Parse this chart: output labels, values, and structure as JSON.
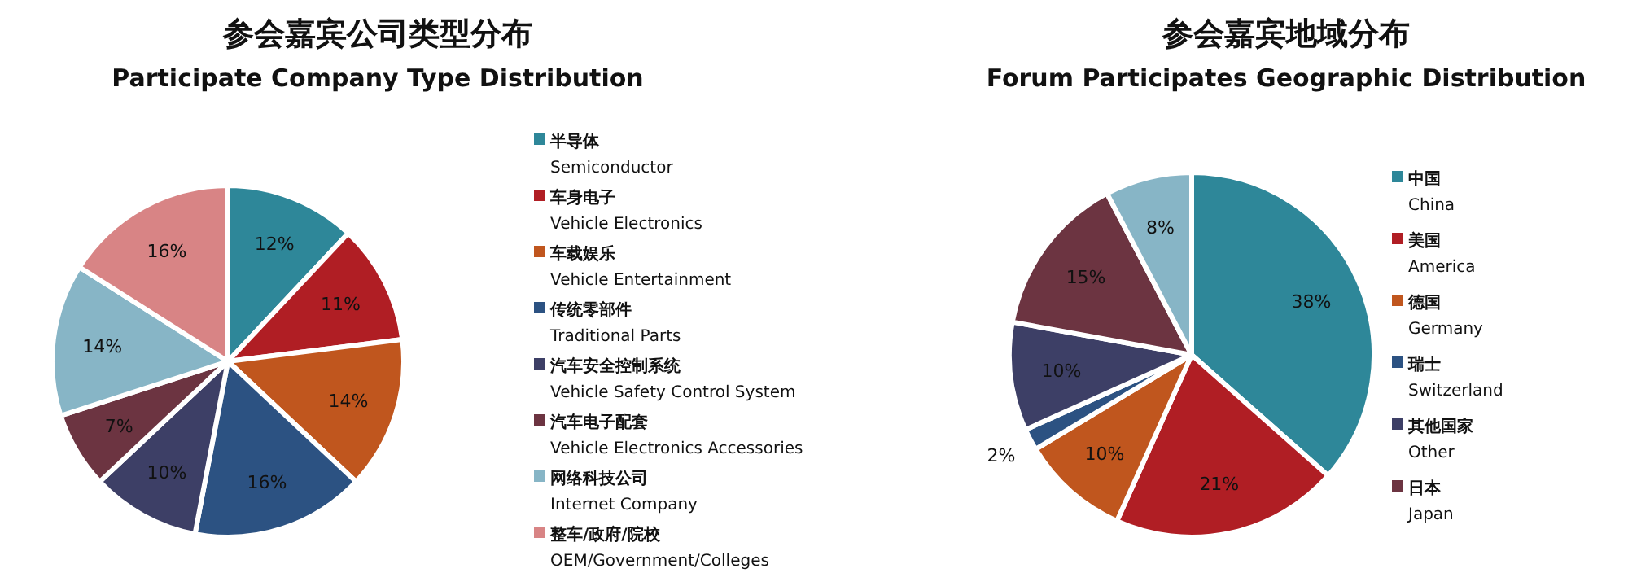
{
  "chart_data": [
    {
      "type": "pie",
      "title": "参会嘉宾公司类型分布",
      "subtitle": "Participate Company Type Distribution",
      "categories": [
        "半导体\nSemiconductor",
        "车身电子\nVehicle Electronics",
        "车载娱乐\nVehicle Entertainment",
        "传统零部件\nTraditional Parts",
        "汽车安全控制系统\nVehicle Safety Control System",
        "汽车电子配套\nVehicle Electronics Accessories",
        "网络科技公司\nInternet Company",
        "整车/政府/院校\nOEM/Government/Colleges"
      ],
      "values": [
        12,
        11,
        14,
        16,
        10,
        7,
        14,
        16
      ],
      "value_labels": [
        "12%",
        "11%",
        "14%",
        "16%",
        "10%",
        "7%",
        "14%",
        "16%"
      ],
      "colors": [
        "#2e8799",
        "#b01e24",
        "#c0561e",
        "#2c5282",
        "#3d3f66",
        "#6c3441",
        "#87b5c6",
        "#d88485"
      ],
      "legend": "right"
    },
    {
      "type": "pie",
      "title": "参会嘉宾地域分布",
      "subtitle": "Forum Participates Geographic Distribution",
      "categories": [
        "中国\nChina",
        "美国\nAmerica",
        "德国\nGermany",
        "瑞士\nSwitzerland",
        "其他国家\nOther",
        "日本\nJapan",
        null
      ],
      "values": [
        38,
        21,
        10,
        2,
        10,
        15,
        8
      ],
      "value_labels": [
        "38%",
        "21%",
        "10%",
        "2%",
        "10%",
        "15%",
        "8%"
      ],
      "colors": [
        "#2e8799",
        "#b01e24",
        "#c0561e",
        "#2c5282",
        "#3d3f66",
        "#6c3441",
        "#87b5c6"
      ],
      "legend": "right"
    }
  ]
}
